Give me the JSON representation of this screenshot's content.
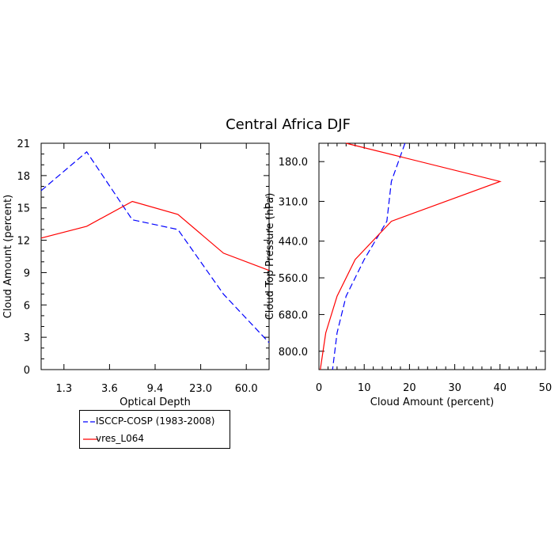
{
  "title": "Central Africa DJF",
  "colors": {
    "obs": "#0000ff",
    "model": "#ff0000",
    "axis": "#000000"
  },
  "legend": {
    "items": [
      {
        "label": "ISCCP-COSP (1983-2008)",
        "style": "dashed",
        "color": "#0000ff"
      },
      {
        "label": "vres_L064",
        "style": "solid",
        "color": "#ff0000"
      }
    ]
  },
  "chart_data": [
    {
      "type": "line",
      "xlabel": "Optical Depth",
      "ylabel": "Cloud Amount (percent)",
      "x_tick_labels": [
        "1.3",
        "3.6",
        "9.4",
        "23.0",
        "60.0"
      ],
      "x": [
        0,
        1,
        2,
        3,
        4,
        5
      ],
      "xlim": [
        0,
        5
      ],
      "ylim": [
        0,
        21
      ],
      "y_ticks": [
        0,
        3,
        6,
        9,
        12,
        15,
        18,
        21
      ],
      "series": [
        {
          "name": "ISCCP-COSP (1983-2008)",
          "style": "dashed",
          "values": [
            16.6,
            20.2,
            13.9,
            13.0,
            7.0,
            2.5
          ]
        },
        {
          "name": "vres_L064",
          "style": "solid",
          "values": [
            12.2,
            13.3,
            15.6,
            14.4,
            10.8,
            9.2
          ]
        }
      ]
    },
    {
      "type": "line",
      "xlabel": "Cloud Amount (percent)",
      "ylabel": "Cloud Top Pressure (hPa)",
      "xlim": [
        0,
        50
      ],
      "x_ticks": [
        0,
        10,
        20,
        30,
        40,
        50
      ],
      "ylim": [
        860,
        120
      ],
      "y_ticks": [
        180,
        310,
        440,
        560,
        680,
        800
      ],
      "y_tick_labels": [
        "180.0",
        "310.0",
        "440.0",
        "560.0",
        "680.0",
        "800.0"
      ],
      "series": [
        {
          "name": "ISCCP-COSP (1983-2008)",
          "style": "dashed",
          "pressure": [
            120,
            245,
            375,
            500,
            620,
            740,
            860
          ],
          "values": [
            19,
            16,
            15,
            10,
            6,
            4,
            3
          ]
        },
        {
          "name": "vres_L064",
          "style": "solid",
          "pressure": [
            120,
            245,
            375,
            500,
            620,
            740,
            860
          ],
          "values": [
            6,
            40,
            16,
            8,
            4,
            1.5,
            0.3
          ]
        }
      ]
    }
  ]
}
